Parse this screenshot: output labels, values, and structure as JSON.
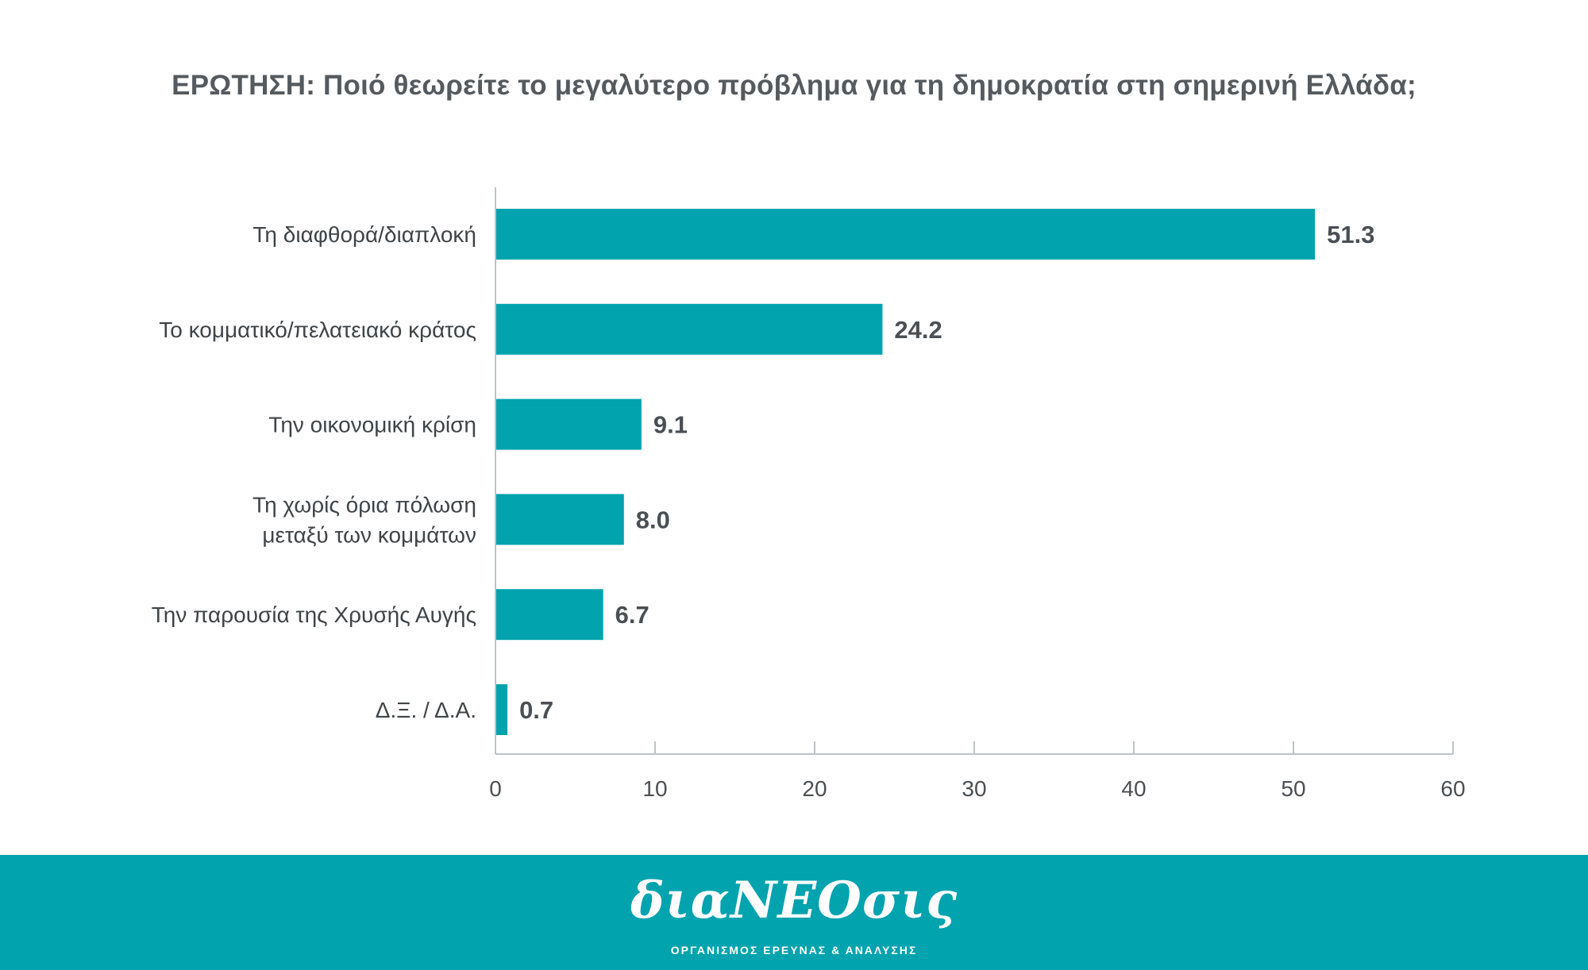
{
  "chart_data": {
    "type": "bar",
    "orientation": "horizontal",
    "title": "ΕΡΩΤΗΣΗ: Ποιό θεωρείτε το μεγαλύτερο πρόβλημα για τη δημοκρατία στη σημερινή Ελλάδα;",
    "categories": [
      "Τη διαφθορά/διαπλοκή",
      "Το κομματικό/πελατειακό κράτος",
      "Την οικονομική κρίση",
      "Τη χωρίς όρια πόλωση μεταξύ των κομμάτων",
      "Την παρουσία της Χρυσής Αυγής",
      "Δ.Ξ. / Δ.Α."
    ],
    "category_lines": [
      [
        "Τη διαφθορά/διαπλοκή"
      ],
      [
        "Το κομματικό/πελατειακό κράτος"
      ],
      [
        "Την οικονομική κρίση"
      ],
      [
        "Τη χωρίς όρια πόλωση",
        "μεταξύ των κομμάτων"
      ],
      [
        "Την παρουσία της Χρυσής Αυγής"
      ],
      [
        "Δ.Ξ. / Δ.Α."
      ]
    ],
    "values": [
      51.3,
      24.2,
      9.1,
      8.0,
      6.7,
      0.7
    ],
    "value_labels": [
      "51.3",
      "24.2",
      "9.1",
      "8.0",
      "6.7",
      "0.7"
    ],
    "xlim": [
      0,
      60
    ],
    "xticks": [
      "0",
      "10",
      "20",
      "30",
      "40",
      "50",
      "60"
    ],
    "grid": false,
    "bar_color": "#00a3ae"
  },
  "footer": {
    "brand": "διαΝΕΟσις",
    "tagline": "ΟΡΓΑΝΙΣΜΟΣ ΕΡΕΥΝΑΣ & ΑΝΑΛΥΣΗΣ",
    "background_color": "#00a3ae"
  }
}
